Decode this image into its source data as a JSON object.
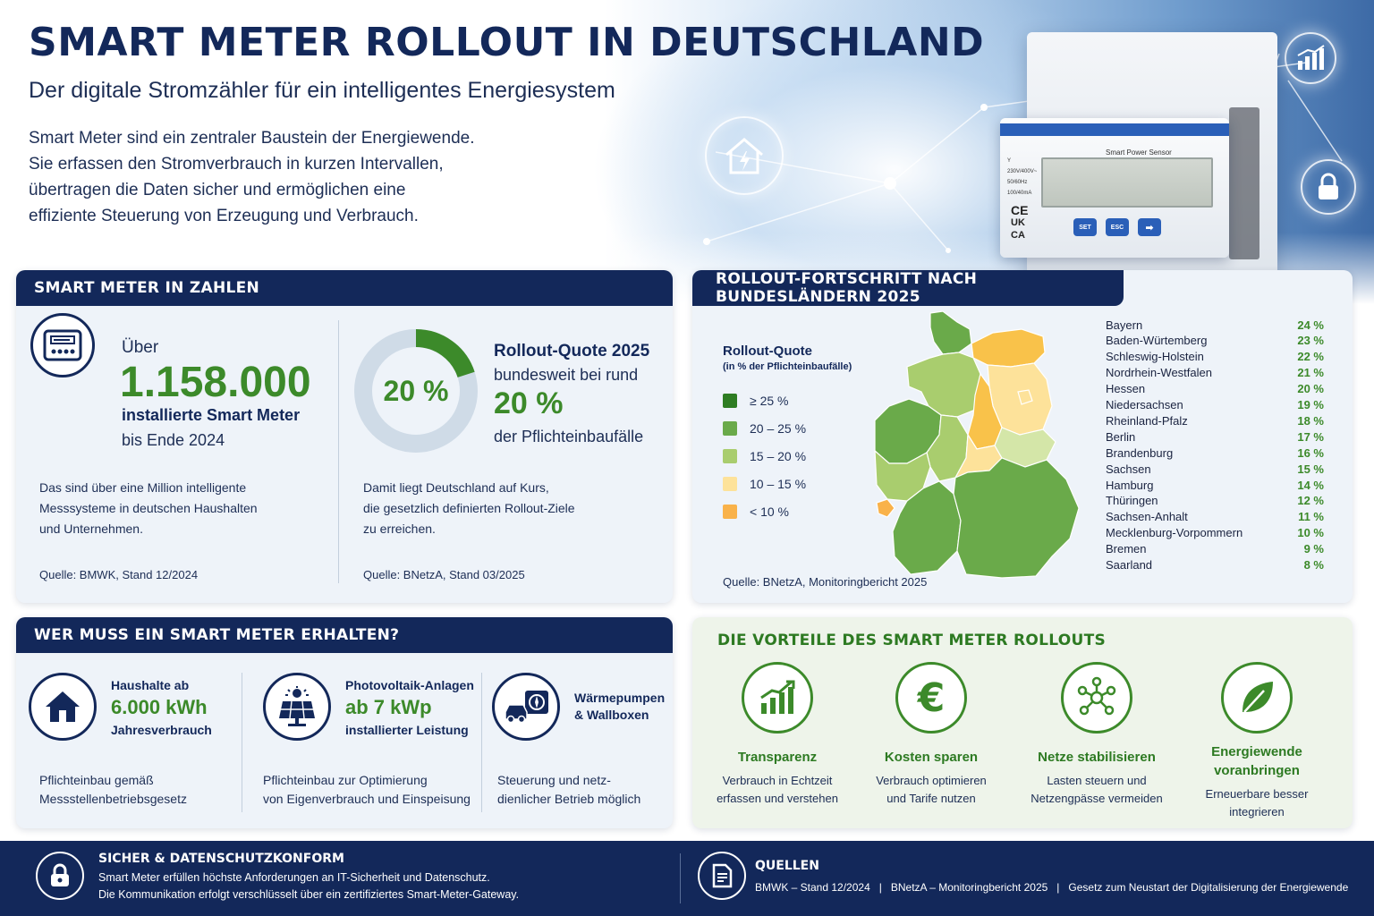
{
  "header": {
    "title": "SMART METER ROLLOUT IN DEUTSCHLAND",
    "subtitle": "Der digitale Stromzähler für ein intelligentes Energiesystem",
    "intro_lines": [
      "Smart Meter sind ein zentraler Baustein der Energiewende.",
      "Sie erfassen den Stromverbrauch in kurzen Intervallen,",
      "übertragen die Daten sicher und ermöglichen eine",
      "effiziente Steuerung von Erzeugung und Verbrauch."
    ]
  },
  "device": {
    "label": "Smart Power Sensor",
    "spec_lines": [
      "Y",
      "230V/400V~",
      "50/60Hz",
      "100/40mA"
    ],
    "marks": [
      "CE",
      "UK",
      "CA"
    ],
    "buttons": [
      "SET",
      "ESC",
      "➡"
    ]
  },
  "numbers": {
    "heading": "SMART METER IN ZAHLEN",
    "left": {
      "icon": "meter-icon",
      "pre": "Über",
      "value": "1.158.000",
      "label": "installierte Smart Meter",
      "post": "bis Ende 2024",
      "desc_lines": [
        "Das sind über eine Million intelligente",
        "Messsysteme in deutschen Haushalten",
        "und Unternehmen."
      ],
      "source": "Quelle: BMWK, Stand 12/2024"
    },
    "right": {
      "donut_label": "20 %",
      "donut_fraction": 0.2,
      "title": "Rollout-Quote 2025",
      "line1": "bundesweit bei rund",
      "value": "20 %",
      "line2": "der Pflichteinbaufälle",
      "desc_lines": [
        "Damit liegt Deutschland auf Kurs,",
        "die gesetzlich definierten Rollout-Ziele",
        "zu erreichen."
      ],
      "source": "Quelle: BNetzA, Stand 03/2025"
    }
  },
  "progress": {
    "heading": "ROLLOUT-FORTSCHRITT NACH BUNDESLÄNDERN 2025",
    "legend_title": "Rollout-Quote",
    "legend_subtitle": "(in % der Pflichteinbaufälle)",
    "legend": [
      {
        "label": "≥ 25 %",
        "color": "#2e7d23"
      },
      {
        "label": "20 – 25 %",
        "color": "#6aaa4a"
      },
      {
        "label": "15 – 20 %",
        "color": "#a9cd6e"
      },
      {
        "label": "10 – 15 %",
        "color": "#fde29a"
      },
      {
        "label": "< 10 %",
        "color": "#f9b24a"
      }
    ],
    "states": [
      {
        "name": "Bayern",
        "value": "24 %"
      },
      {
        "name": "Baden-Würtemberg",
        "value": "23 %"
      },
      {
        "name": "Schleswig-Holstein",
        "value": "22 %"
      },
      {
        "name": "Nordrhein-Westfalen",
        "value": "21 %"
      },
      {
        "name": "Hessen",
        "value": "20 %"
      },
      {
        "name": "Niedersachsen",
        "value": "19 %"
      },
      {
        "name": "Rheinland-Pfalz",
        "value": "18 %"
      },
      {
        "name": "Berlin",
        "value": "17 %"
      },
      {
        "name": "Brandenburg",
        "value": "16 %"
      },
      {
        "name": "Sachsen",
        "value": "15 %"
      },
      {
        "name": "Hamburg",
        "value": "14 %"
      },
      {
        "name": "Thüringen",
        "value": "12 %"
      },
      {
        "name": "Sachsen-Anhalt",
        "value": "11 %"
      },
      {
        "name": "Mecklenburg-Vorpommern",
        "value": "10 %"
      },
      {
        "name": "Bremen",
        "value": "9 %"
      },
      {
        "name": "Saarland",
        "value": "8 %"
      }
    ],
    "source": "Quelle: BNetzA, Monitoringbericht 2025"
  },
  "who": {
    "heading": "WER MUSS EIN SMART METER ERHALTEN?",
    "items": [
      {
        "icon": "house-icon",
        "line1": "Haushalte ab",
        "value": "6.000 kWh",
        "line2": "Jahresverbrauch",
        "desc_lines": [
          "Pflichteinbau gemäß",
          "Messstellenbetriebsgesetz"
        ]
      },
      {
        "icon": "solar-panel-icon",
        "line1": "Photovoltaik-Anlagen",
        "value": "ab 7 kWp",
        "line2": "installierter Leistung",
        "desc_lines": [
          "Pflichteinbau zur Optimierung",
          "von Eigenverbrauch und Einspeisung"
        ]
      },
      {
        "icon": "heatpump-car-icon",
        "line1": "Wärmepumpen",
        "line2": "& Wallboxen",
        "desc_lines": [
          "Steuerung und netz-",
          "dienlicher Betrieb möglich"
        ]
      }
    ]
  },
  "benefits": {
    "heading": "DIE VORTEILE DES SMART METER ROLLOUTS",
    "items": [
      {
        "icon": "growth-chart-icon",
        "title": "Transparenz",
        "desc_lines": [
          "Verbrauch in Echtzeit",
          "erfassen und verstehen"
        ]
      },
      {
        "icon": "euro-icon",
        "title": "Kosten sparen",
        "desc_lines": [
          "Verbrauch optimieren",
          "und Tarife nutzen"
        ]
      },
      {
        "icon": "network-icon",
        "title": "Netze stabilisieren",
        "desc_lines": [
          "Lasten steuern und",
          "Netzengpässe vermeiden"
        ]
      },
      {
        "icon": "leaf-icon",
        "title_lines": [
          "Energiewende",
          "voranbringen"
        ],
        "desc_lines": [
          "Erneuerbare besser",
          "integrieren"
        ]
      }
    ]
  },
  "footer": {
    "security_title": "SICHER & DATENSCHUTZKONFORM",
    "security_lines": [
      "Smart Meter erfüllen höchste Anforderungen an IT-Sicherheit und Datenschutz.",
      "Die Kommunikation erfolgt verschlüsselt über ein zertifiziertes Smart-Meter-Gateway."
    ],
    "sources_title": "QUELLEN",
    "sources_text": "BMWK – Stand 12/2024   |   BNetzA – Monitoringbericht 2025   |   Gesetz zum Neustart der Digitalisierung der Energiewende"
  }
}
